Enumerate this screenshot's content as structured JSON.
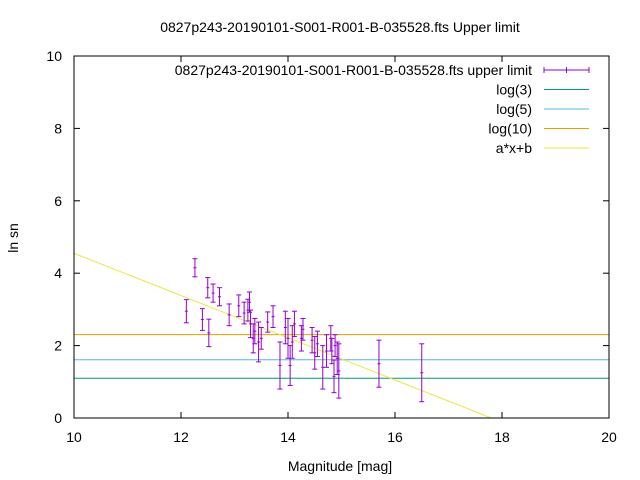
{
  "chart_data": {
    "type": "scatter",
    "title": "0827p243-20190101-S001-R001-B-035528.fts Upper limit",
    "xlabel": "Magnitude [mag]",
    "ylabel": "ln sn",
    "xlim": [
      10,
      20
    ],
    "ylim": [
      0,
      10
    ],
    "xticks": [
      "10",
      "12",
      "14",
      "16",
      "18",
      "20"
    ],
    "yticks": [
      "0",
      "2",
      "4",
      "6",
      "8",
      "10"
    ],
    "grid": false,
    "legend_position": "top-right",
    "colors": {
      "points": "#9400d3",
      "log3": "#009e73",
      "log5": "#56b4e9",
      "log10": "#e69f00",
      "fit": "#f0e442"
    },
    "legend": [
      {
        "label": "0827p243-20190101-S001-R001-B-035528.fts upper limit",
        "style": "errorbar",
        "color": "#9400d3"
      },
      {
        "label": "log(3)",
        "style": "line",
        "color": "#009e73"
      },
      {
        "label": "log(5)",
        "style": "line",
        "color": "#56b4e9"
      },
      {
        "label": "log(10)",
        "style": "line",
        "color": "#e69f00"
      },
      {
        "label": "a*x+b",
        "style": "line",
        "color": "#f0e442"
      }
    ],
    "series": [
      {
        "name": "0827p243-20190101-S001-R001-B-035528.fts upper limit",
        "kind": "errorbar",
        "points": [
          {
            "x": 12.1,
            "y": 2.95,
            "err": 0.32
          },
          {
            "x": 12.26,
            "y": 4.15,
            "err": 0.25
          },
          {
            "x": 12.4,
            "y": 2.72,
            "err": 0.3
          },
          {
            "x": 12.5,
            "y": 3.6,
            "err": 0.28
          },
          {
            "x": 12.52,
            "y": 2.35,
            "err": 0.38
          },
          {
            "x": 12.6,
            "y": 3.45,
            "err": 0.25
          },
          {
            "x": 12.72,
            "y": 3.35,
            "err": 0.25
          },
          {
            "x": 12.9,
            "y": 2.85,
            "err": 0.3
          },
          {
            "x": 13.08,
            "y": 3.1,
            "err": 0.3
          },
          {
            "x": 13.18,
            "y": 2.9,
            "err": 0.3
          },
          {
            "x": 13.25,
            "y": 2.98,
            "err": 0.3
          },
          {
            "x": 13.28,
            "y": 3.2,
            "err": 0.28
          },
          {
            "x": 13.3,
            "y": 2.6,
            "err": 0.38
          },
          {
            "x": 13.35,
            "y": 2.2,
            "err": 0.4
          },
          {
            "x": 13.38,
            "y": 2.4,
            "err": 0.35
          },
          {
            "x": 13.45,
            "y": 2.1,
            "err": 0.55
          },
          {
            "x": 13.5,
            "y": 2.2,
            "err": 0.3
          },
          {
            "x": 13.62,
            "y": 2.65,
            "err": 0.28
          },
          {
            "x": 13.72,
            "y": 2.8,
            "err": 0.3
          },
          {
            "x": 13.85,
            "y": 1.45,
            "err": 0.65
          },
          {
            "x": 13.95,
            "y": 2.5,
            "err": 0.45
          },
          {
            "x": 14.0,
            "y": 2.2,
            "err": 0.55
          },
          {
            "x": 14.04,
            "y": 1.45,
            "err": 0.55
          },
          {
            "x": 14.08,
            "y": 2.1,
            "err": 0.45
          },
          {
            "x": 14.12,
            "y": 2.6,
            "err": 0.35
          },
          {
            "x": 14.25,
            "y": 2.2,
            "err": 0.35
          },
          {
            "x": 14.28,
            "y": 2.45,
            "err": 0.3
          },
          {
            "x": 14.45,
            "y": 2.15,
            "err": 0.35
          },
          {
            "x": 14.5,
            "y": 1.8,
            "err": 0.45
          },
          {
            "x": 14.55,
            "y": 2.05,
            "err": 0.35
          },
          {
            "x": 14.65,
            "y": 1.4,
            "err": 0.6
          },
          {
            "x": 14.72,
            "y": 1.85,
            "err": 0.45
          },
          {
            "x": 14.8,
            "y": 2.2,
            "err": 0.35
          },
          {
            "x": 14.82,
            "y": 1.85,
            "err": 0.35
          },
          {
            "x": 14.86,
            "y": 1.15,
            "err": 0.45
          },
          {
            "x": 14.88,
            "y": 2.0,
            "err": 0.3
          },
          {
            "x": 14.92,
            "y": 1.65,
            "err": 0.45
          },
          {
            "x": 14.95,
            "y": 1.3,
            "err": 0.75
          },
          {
            "x": 15.7,
            "y": 1.5,
            "err": 0.65
          },
          {
            "x": 16.5,
            "y": 1.25,
            "err": 0.8
          }
        ]
      },
      {
        "name": "log(3)",
        "kind": "hline",
        "y": 1.0986
      },
      {
        "name": "log(5)",
        "kind": "hline",
        "y": 1.6094
      },
      {
        "name": "log(10)",
        "kind": "hline",
        "y": 2.3026
      },
      {
        "name": "a*x+b",
        "kind": "line",
        "points": [
          {
            "x": 10,
            "y": 4.55
          },
          {
            "x": 17.8,
            "y": 0.0
          }
        ]
      }
    ]
  }
}
